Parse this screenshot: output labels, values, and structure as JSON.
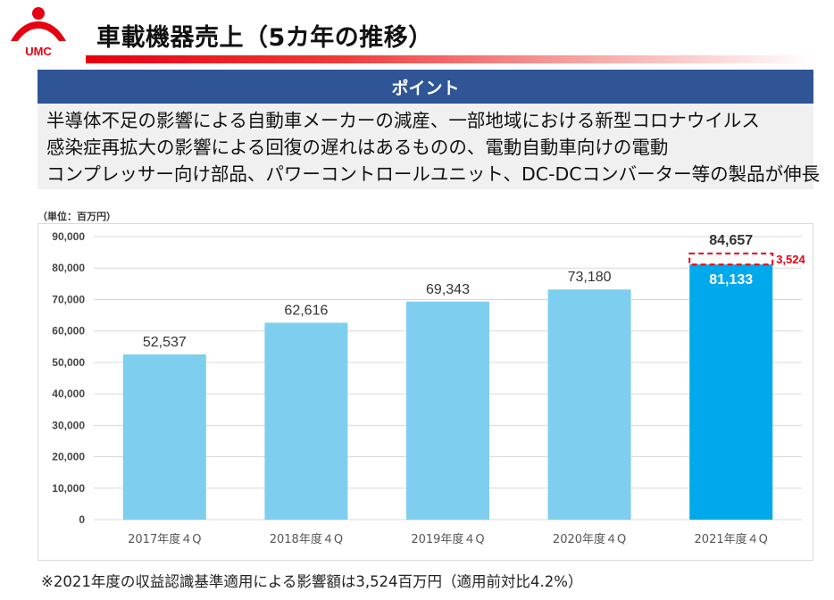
{
  "header": {
    "logo_text": "UMC",
    "title": "車載機器売上（5カ年の推移）"
  },
  "point": {
    "heading": "ポイント",
    "lines": [
      "半導体不足の影響による自動車メーカーの減産、一部地域における新型コロナウイルス",
      "感染症再拡大の影響による回復の遅れはあるものの、電動自動車向けの電動",
      "コンプレッサー向け部品、パワーコントロールユニット、DC-DCコンバーター等の製品が伸長"
    ]
  },
  "unit_label": "（単位：百万円）",
  "chart_data": {
    "type": "bar",
    "categories": [
      "2017年度４Q",
      "2018年度４Q",
      "2019年度４Q",
      "2020年度４Q",
      "2021年度４Q"
    ],
    "values": [
      52537,
      62616,
      69343,
      73180,
      81133
    ],
    "value_labels": [
      "52,537",
      "62,616",
      "69,343",
      "73,180",
      "81,133"
    ],
    "ylim": [
      0,
      90000
    ],
    "yticks": [
      0,
      10000,
      20000,
      30000,
      40000,
      50000,
      60000,
      70000,
      80000,
      90000
    ],
    "ytick_labels": [
      "0",
      "10,000",
      "20,000",
      "30,000",
      "40,000",
      "50,000",
      "60,000",
      "70,000",
      "80,000",
      "90,000"
    ],
    "grid": true,
    "bar_color": "#7ecef0",
    "highlight_color": "#00a9eb",
    "highlight_index": 4,
    "adjustment": {
      "category_index": 4,
      "value": 3524,
      "label": "3,524",
      "total": 84657,
      "total_label": "84,657",
      "color": "#e60012"
    }
  },
  "footnote": "※2021年度の収益認識基準適用による影響額は3,524百万円（適用前対比4.2%）"
}
